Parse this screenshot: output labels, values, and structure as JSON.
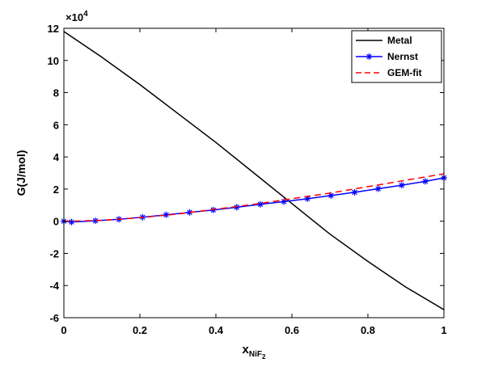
{
  "chart_data": {
    "type": "line",
    "xlabel": {
      "base": "x",
      "sub_main": "NiF",
      "sub_sub": "2"
    },
    "ylabel": "G(J/mol)",
    "exponent": {
      "base": "×10",
      "power": "4"
    },
    "xlim": [
      0,
      1
    ],
    "ylim": [
      -6,
      12
    ],
    "xticks": [
      0,
      0.2,
      0.4,
      0.6,
      0.8,
      1
    ],
    "xtick_labels": [
      "0",
      "0.2",
      "0.4",
      "0.6",
      "0.8",
      "1"
    ],
    "yticks": [
      -6,
      -4,
      -2,
      0,
      2,
      4,
      6,
      8,
      10,
      12
    ],
    "ytick_labels": [
      "-6",
      "-4",
      "-2",
      "0",
      "2",
      "4",
      "6",
      "8",
      "10",
      "12"
    ],
    "grid": false,
    "legend_position": "top-right",
    "series": [
      {
        "name": "Metal",
        "color": "#000000",
        "style": "solid",
        "marker": "none",
        "x": [
          0,
          0.1,
          0.2,
          0.3,
          0.4,
          0.5,
          0.6,
          0.7,
          0.8,
          0.9,
          1.0
        ],
        "y": [
          11.8,
          10.2,
          8.5,
          6.7,
          4.9,
          3.0,
          1.1,
          -0.8,
          -2.5,
          -4.1,
          -5.5
        ]
      },
      {
        "name": "Nernst",
        "color": "#0000ff",
        "style": "solid",
        "marker": "star",
        "x": [
          0,
          0.02,
          0.083,
          0.145,
          0.207,
          0.269,
          0.331,
          0.393,
          0.455,
          0.517,
          0.579,
          0.641,
          0.703,
          0.765,
          0.827,
          0.889,
          0.951,
          1.0
        ],
        "y": [
          0.0,
          -0.05,
          0.03,
          0.12,
          0.25,
          0.4,
          0.55,
          0.7,
          0.87,
          1.05,
          1.22,
          1.4,
          1.6,
          1.8,
          2.02,
          2.24,
          2.48,
          2.7
        ]
      },
      {
        "name": "GEM-fit",
        "color": "#ff0000",
        "style": "dashed",
        "marker": "none",
        "x": [
          0,
          0.05,
          0.1,
          0.15,
          0.2,
          0.3,
          0.4,
          0.5,
          0.6,
          0.7,
          0.8,
          0.9,
          1.0
        ],
        "y": [
          0.0,
          0.02,
          0.06,
          0.13,
          0.22,
          0.45,
          0.75,
          1.05,
          1.4,
          1.75,
          2.15,
          2.55,
          2.95
        ]
      }
    ]
  }
}
